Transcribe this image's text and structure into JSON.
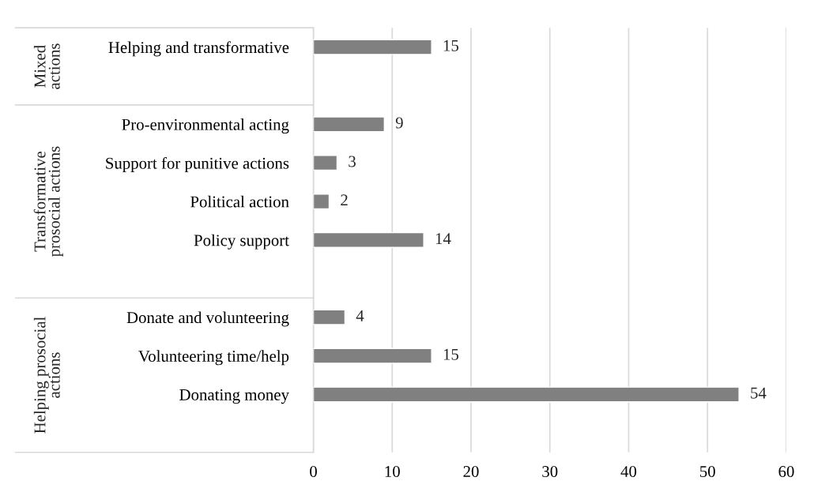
{
  "chart_data": {
    "type": "bar",
    "orientation": "horizontal",
    "categories": [
      "Helping and transformative",
      null,
      "Pro-environmental acting",
      "Support for punitive actions",
      "Political action",
      "Policy support",
      null,
      "Donate and volunteering",
      "Volunteering time/help",
      "Donating money",
      null
    ],
    "values": [
      15,
      null,
      9,
      3,
      2,
      14,
      null,
      4,
      15,
      54,
      null
    ],
    "color": "#808080",
    "xlim": [
      0,
      60
    ],
    "xticks": [
      0,
      10,
      20,
      30,
      40,
      50,
      60
    ],
    "grid": "x",
    "data_labels": true,
    "annotations": [
      "Mixed\nactions",
      "Transformative\nprosocial actions",
      "Helping prosocial\nactions"
    ]
  }
}
